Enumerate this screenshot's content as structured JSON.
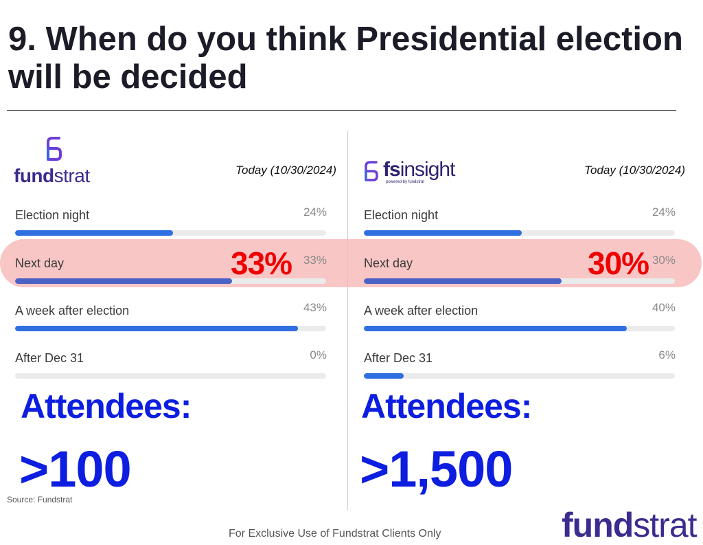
{
  "title": "9. When do you think Presidential election will be decided",
  "panels": [
    {
      "logo_text_a": "fund",
      "logo_text_b": "strat",
      "date": "Today (10/30/2024)",
      "highlight_pct": "33%",
      "attendees_label": "Attendees:",
      "attendees_count": ">100"
    },
    {
      "logo_text_a": "fs",
      "logo_text_b": "insight",
      "logo_sub": "powered by fundstrat",
      "date": "Today (10/30/2024)",
      "highlight_pct": "30%",
      "attendees_label": "Attendees:",
      "attendees_count": ">1,500"
    }
  ],
  "chart_data": [
    {
      "type": "bar",
      "orientation": "horizontal",
      "title": "Today (10/30/2024)",
      "categories": [
        "Election night",
        "Next day",
        "A week after election",
        "After Dec 31"
      ],
      "values": [
        24,
        33,
        43,
        0
      ],
      "value_labels": [
        "24%",
        "33%",
        "43%",
        "0%"
      ],
      "ylim": [
        0,
        100
      ]
    },
    {
      "type": "bar",
      "orientation": "horizontal",
      "title": "Today (10/30/2024)",
      "categories": [
        "Election night",
        "Next day",
        "A week after election",
        "After Dec 31"
      ],
      "values": [
        24,
        30,
        40,
        6
      ],
      "value_labels": [
        "24%",
        "30%",
        "40%",
        "6%"
      ],
      "ylim": [
        0,
        100
      ]
    }
  ],
  "colors": {
    "bar_fill": "#2f6fe0",
    "highlight_band": "#f7b6b6",
    "highlight_text": "#ee0000",
    "attendees_text": "#0d1ee0",
    "brand": "#3b2d8f"
  },
  "icons": {
    "fundstrat_logo": "fs-logo-icon",
    "fsinsight_logo": "fs-logo-icon"
  },
  "source": "Source: Fundstrat",
  "footer": "For Exclusive Use of Fundstrat Clients Only",
  "footer_logo": {
    "a": "fund",
    "b": "strat"
  }
}
